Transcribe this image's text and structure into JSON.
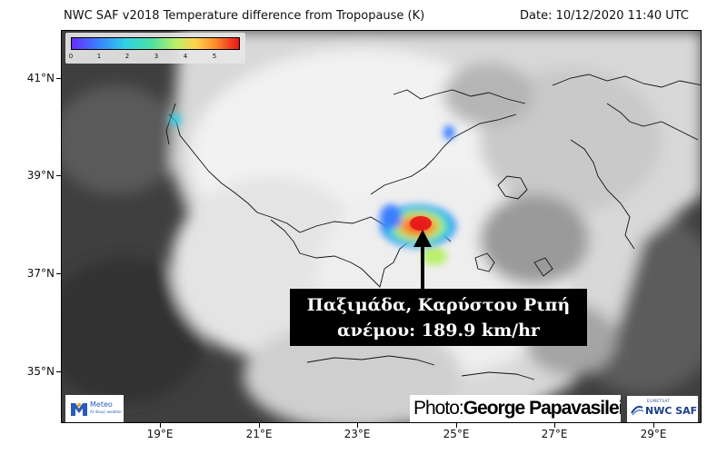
{
  "header": {
    "title": "NWC SAF v2018 Temperature difference from Tropopause (K)",
    "date": "Date: 10/12/2020 11:40 UTC"
  },
  "axes": {
    "lat_ticks": [
      {
        "value": 41,
        "label": "41°N"
      },
      {
        "value": 39,
        "label": "39°N"
      },
      {
        "value": 37,
        "label": "37°N"
      },
      {
        "value": 35,
        "label": "35°N"
      }
    ],
    "lon_ticks": [
      {
        "value": 19,
        "label": "19°E"
      },
      {
        "value": 21,
        "label": "21°E"
      },
      {
        "value": 23,
        "label": "23°E"
      },
      {
        "value": 25,
        "label": "25°E"
      },
      {
        "value": 27,
        "label": "27°E"
      },
      {
        "value": 29,
        "label": "29°E"
      }
    ]
  },
  "colorbar": {
    "labels": [
      "0",
      "1",
      "2",
      "3",
      "4",
      "5"
    ],
    "colors": [
      "#6a2cff",
      "#3a7dff",
      "#2fd1e6",
      "#4ee0a0",
      "#b9f06a",
      "#ffd34d",
      "#ff8a2a",
      "#e8141a"
    ]
  },
  "annotation": {
    "line1": "Παξιμάδα, Καρύστου Ριπή",
    "line2": "ανέμου: 189.9 km/hr"
  },
  "credit": {
    "label": "Photo:",
    "name": "George Papavasileiou"
  },
  "logos": {
    "meteo_word": "Meteo",
    "meteo_tag": "At dieuci weather",
    "nwc_org": "EUMETSAT",
    "nwc_name": "NWC SAF"
  }
}
